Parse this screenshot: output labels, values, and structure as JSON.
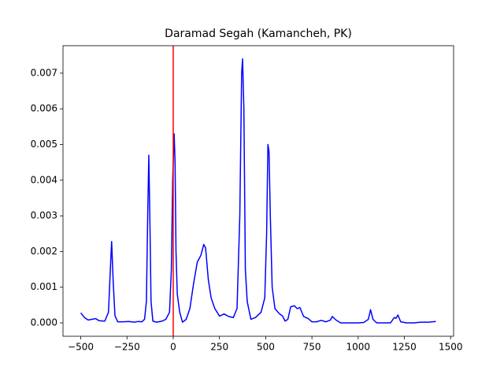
{
  "chart_data": {
    "type": "line",
    "title": "Daramad Segah (Kamancheh, PK)",
    "x": [
      -500,
      -480,
      -460,
      -440,
      -420,
      -400,
      -370,
      -350,
      -340,
      -333,
      -325,
      -315,
      -300,
      -270,
      -240,
      -210,
      -190,
      -170,
      -155,
      -145,
      -138,
      -132,
      -126,
      -120,
      -110,
      -90,
      -60,
      -40,
      -20,
      -10,
      -3,
      5,
      10,
      15,
      22,
      35,
      50,
      70,
      90,
      110,
      130,
      150,
      165,
      175,
      190,
      205,
      225,
      250,
      275,
      300,
      325,
      345,
      360,
      370,
      375,
      382,
      390,
      400,
      420,
      445,
      475,
      495,
      505,
      512,
      518,
      525,
      535,
      550,
      575,
      590,
      605,
      620,
      635,
      655,
      670,
      685,
      705,
      730,
      750,
      775,
      800,
      825,
      850,
      860,
      880,
      905,
      950,
      1000,
      1030,
      1055,
      1067,
      1080,
      1100,
      1150,
      1175,
      1195,
      1205,
      1215,
      1230,
      1260,
      1300,
      1340,
      1380,
      1420
    ],
    "series": [
      {
        "color": "#0000ff",
        "values": [
          0.00028,
          0.00015,
          8e-05,
          0.0001,
          0.00012,
          6e-05,
          5e-05,
          0.0003,
          0.0015,
          0.00228,
          0.0012,
          0.0002,
          3e-05,
          3e-05,
          4e-05,
          2e-05,
          4e-05,
          3e-05,
          0.0001,
          0.0006,
          0.003,
          0.0047,
          0.0028,
          0.0006,
          5e-05,
          2e-05,
          5e-05,
          0.0001,
          0.0003,
          0.0015,
          0.004,
          0.0053,
          0.0045,
          0.002,
          0.0008,
          0.0003,
          2e-05,
          0.0001,
          0.0004,
          0.0011,
          0.0017,
          0.0019,
          0.0022,
          0.0021,
          0.0012,
          0.0007,
          0.0004,
          0.00019,
          0.00025,
          0.00018,
          0.00015,
          0.0004,
          0.003,
          0.007,
          0.0074,
          0.006,
          0.0015,
          0.0006,
          0.0001,
          0.00015,
          0.0003,
          0.0007,
          0.0025,
          0.005,
          0.0048,
          0.003,
          0.001,
          0.0004,
          0.00025,
          0.0002,
          5e-05,
          0.0001,
          0.00045,
          0.00048,
          0.0004,
          0.00043,
          0.00018,
          0.00012,
          3e-05,
          3e-05,
          7e-05,
          3e-05,
          8e-05,
          0.00018,
          8e-05,
          0,
          0,
          0,
          1e-05,
          0.0001,
          0.00037,
          0.0001,
          0,
          0,
          0,
          0.00015,
          0.00013,
          0.00022,
          3e-05,
          0,
          0,
          2e-05,
          2e-05,
          4e-05
        ]
      }
    ],
    "vline": {
      "value": 0,
      "color": "#ff0000"
    },
    "xlim": [
      -596,
      1516
    ],
    "ylim": [
      -0.000375,
      0.00777
    ],
    "xticks": [
      {
        "value": -500,
        "label": "−500"
      },
      {
        "value": -250,
        "label": "−250"
      },
      0,
      250,
      500,
      750,
      1000,
      1250,
      1500
    ],
    "yticks": [
      {
        "value": 0,
        "label": "0.000"
      },
      {
        "value": 0.001,
        "label": "0.001"
      },
      {
        "value": 0.002,
        "label": "0.002"
      },
      {
        "value": 0.003,
        "label": "0.003"
      },
      {
        "value": 0.004,
        "label": "0.004"
      },
      {
        "value": 0.005,
        "label": "0.005"
      },
      {
        "value": 0.006,
        "label": "0.006"
      },
      {
        "value": 0.007,
        "label": "0.007"
      }
    ]
  }
}
